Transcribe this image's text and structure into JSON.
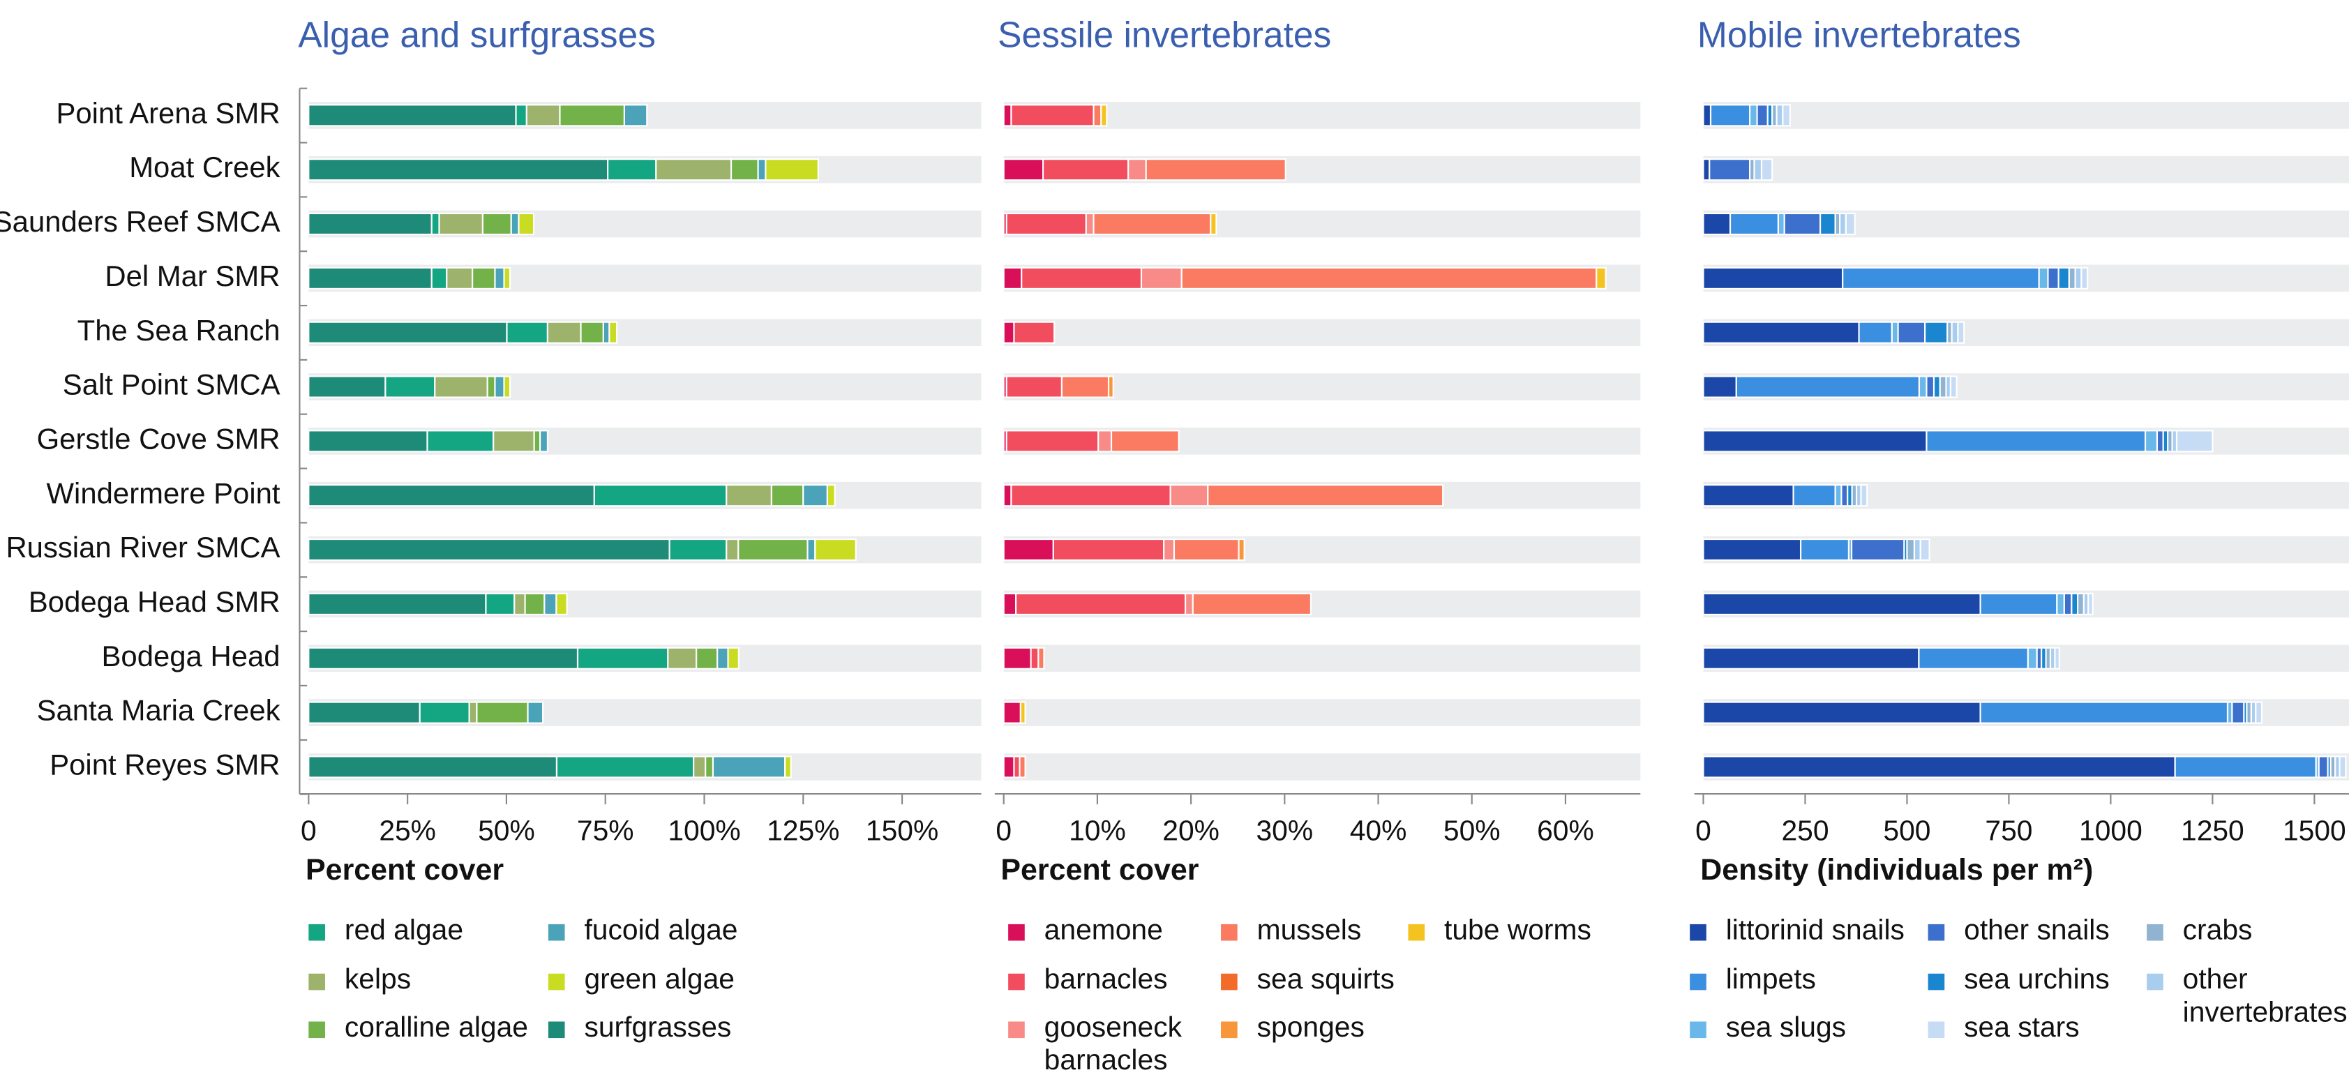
{
  "chart_data": [
    {
      "type": "bar",
      "orientation": "horizontal",
      "stacked": true,
      "title": "Algae and surfgrasses",
      "xlabel": "Percent cover",
      "categories": [
        "Point Arena SMR",
        "Moat Creek",
        "Saunders Reef SMCA",
        "Del Mar SMR",
        "The Sea Ranch",
        "Salt Point SMCA",
        "Gerstle Cove SMR",
        "Windermere Point",
        "Russian River SMCA",
        "Bodega Head SMR",
        "Bodega Head",
        "Santa Maria Creek",
        "Point Reyes SMR"
      ],
      "xlim": [
        0,
        170
      ],
      "xticks": [
        0,
        {
          "value": 25,
          "label": "25%"
        },
        {
          "value": 50,
          "label": "50%"
        },
        {
          "value": 75,
          "label": "75%"
        },
        {
          "value": 100,
          "label": "100%"
        },
        {
          "value": 125,
          "label": "125%"
        },
        {
          "value": 150,
          "label": "150%"
        }
      ],
      "series": [
        {
          "name": "surfgrasses",
          "color": "#1e8a78",
          "values": [
            52.4,
            75.6,
            31.1,
            31.1,
            50.1,
            19.4,
            30,
            72.2,
            91.2,
            44.8,
            68,
            28.1,
            62.7
          ]
        },
        {
          "name": "red algae",
          "color": "#14a582",
          "values": [
            2.7,
            12.2,
            1.9,
            3.8,
            10.3,
            12.5,
            16.7,
            33.4,
            14.4,
            7.2,
            22.8,
            12.5,
            34.6
          ]
        },
        {
          "name": "kelps",
          "color": "#9db36b",
          "values": [
            8.4,
            19,
            11,
            6.5,
            8.4,
            13.3,
            10.3,
            11.4,
            3,
            2.7,
            7.2,
            1.9,
            3
          ]
        },
        {
          "name": "coralline algae",
          "color": "#72b249",
          "values": [
            16.3,
            6.8,
            7.2,
            5.7,
            5.7,
            1.9,
            1.5,
            8,
            17.5,
            4.9,
            5.3,
            12.9,
            1.9
          ]
        },
        {
          "name": "fucoid algae",
          "color": "#4aa3b8",
          "values": [
            5.7,
            1.9,
            1.9,
            2.3,
            1.5,
            2.3,
            1.9,
            6.1,
            1.9,
            3,
            2.7,
            3.8,
            18.2
          ]
        },
        {
          "name": "green algae",
          "color": "#c9dc22",
          "values": [
            0,
            13.3,
            3.8,
            1.5,
            1.9,
            1.5,
            0,
            1.9,
            10.3,
            2.7,
            2.7,
            0,
            1.5
          ]
        }
      ]
    },
    {
      "type": "bar",
      "orientation": "horizontal",
      "stacked": true,
      "title": "Sessile invertebrates",
      "xlabel": "Percent cover",
      "xlim": [
        0,
        68
      ],
      "xticks": [
        0,
        {
          "value": 10,
          "label": "10%"
        },
        {
          "value": 20,
          "label": "20%"
        },
        {
          "value": 30,
          "label": "30%"
        },
        {
          "value": 40,
          "label": "40%"
        },
        {
          "value": 50,
          "label": "50%"
        },
        {
          "value": 60,
          "label": "60%"
        }
      ],
      "series": [
        {
          "name": "anemone",
          "color": "#d90f5a",
          "values": [
            0.8,
            4.2,
            0.3,
            1.9,
            1.1,
            0.3,
            0.3,
            0.8,
            5.3,
            1.3,
            2.9,
            1.8,
            1.1
          ]
        },
        {
          "name": "barnacles",
          "color": "#f24d5e",
          "values": [
            8.8,
            9.1,
            8.5,
            12.8,
            4.3,
            5.9,
            9.8,
            17,
            11.8,
            18.1,
            0.8,
            0,
            0.6
          ]
        },
        {
          "name": "gooseneck barnacles",
          "color": "#f88b88",
          "values": [
            0,
            1.9,
            0.8,
            4.3,
            0,
            0,
            1.4,
            4,
            1.1,
            0.8,
            0,
            0,
            0
          ]
        },
        {
          "name": "mussels",
          "color": "#fa7b62",
          "values": [
            0.8,
            14.9,
            12.5,
            44.3,
            0,
            5,
            7.2,
            25.1,
            6.9,
            12.6,
            0.6,
            0,
            0.6
          ]
        },
        {
          "name": "sea squirts",
          "color": "#f26b2a",
          "values": [
            0,
            0,
            0,
            0,
            0,
            0,
            0,
            0,
            0,
            0,
            0,
            0,
            0
          ]
        },
        {
          "name": "sponges",
          "color": "#f8963c",
          "values": [
            0,
            0,
            0,
            0,
            0,
            0.5,
            0,
            0,
            0.6,
            0,
            0,
            0,
            0
          ]
        },
        {
          "name": "tube worms",
          "color": "#f5c320",
          "values": [
            0.6,
            0,
            0.6,
            1,
            0,
            0,
            0,
            0,
            0,
            0,
            0,
            0.5,
            0
          ]
        }
      ]
    },
    {
      "type": "bar",
      "orientation": "horizontal",
      "stacked": true,
      "title": "Mobile invertebrates",
      "xlabel": "Density (individuals per m²)",
      "xlim": [
        0,
        1585
      ],
      "xticks": [
        0,
        250,
        500,
        750,
        1000,
        1250,
        1500
      ],
      "series": [
        {
          "name": "littorinid snails",
          "color": "#1a47a8",
          "values": [
            18,
            15,
            66,
            342,
            382,
            81,
            548,
            221,
            239,
            680,
            529,
            680,
            1158
          ]
        },
        {
          "name": "limpets",
          "color": "#3b8fe0",
          "values": [
            96,
            0,
            118,
            482,
            81,
            449,
            537,
            103,
            118,
            188,
            268,
            607,
            346
          ]
        },
        {
          "name": "sea slugs",
          "color": "#6ab8ea",
          "values": [
            18,
            0,
            15,
            22,
            15,
            18,
            29,
            15,
            7,
            18,
            22,
            11,
            7
          ]
        },
        {
          "name": "other snails",
          "color": "#3d6fcc",
          "values": [
            26,
            99,
            88,
            26,
            66,
            18,
            15,
            15,
            129,
            18,
            11,
            29,
            22
          ]
        },
        {
          "name": "sea urchins",
          "color": "#1b86d0",
          "values": [
            11,
            0,
            37,
            26,
            55,
            15,
            11,
            11,
            7,
            15,
            11,
            7,
            7
          ]
        },
        {
          "name": "crabs",
          "color": "#8fb3d0",
          "values": [
            11,
            11,
            11,
            15,
            11,
            15,
            11,
            11,
            18,
            15,
            11,
            11,
            11
          ]
        },
        {
          "name": "other invertebrates",
          "color": "#a9cdee",
          "values": [
            15,
            18,
            15,
            15,
            15,
            11,
            11,
            11,
            15,
            11,
            11,
            11,
            11
          ]
        },
        {
          "name": "sea stars",
          "color": "#c6dcf5",
          "values": [
            18,
            26,
            22,
            15,
            15,
            15,
            88,
            15,
            22,
            11,
            11,
            15,
            15
          ]
        }
      ]
    }
  ]
}
